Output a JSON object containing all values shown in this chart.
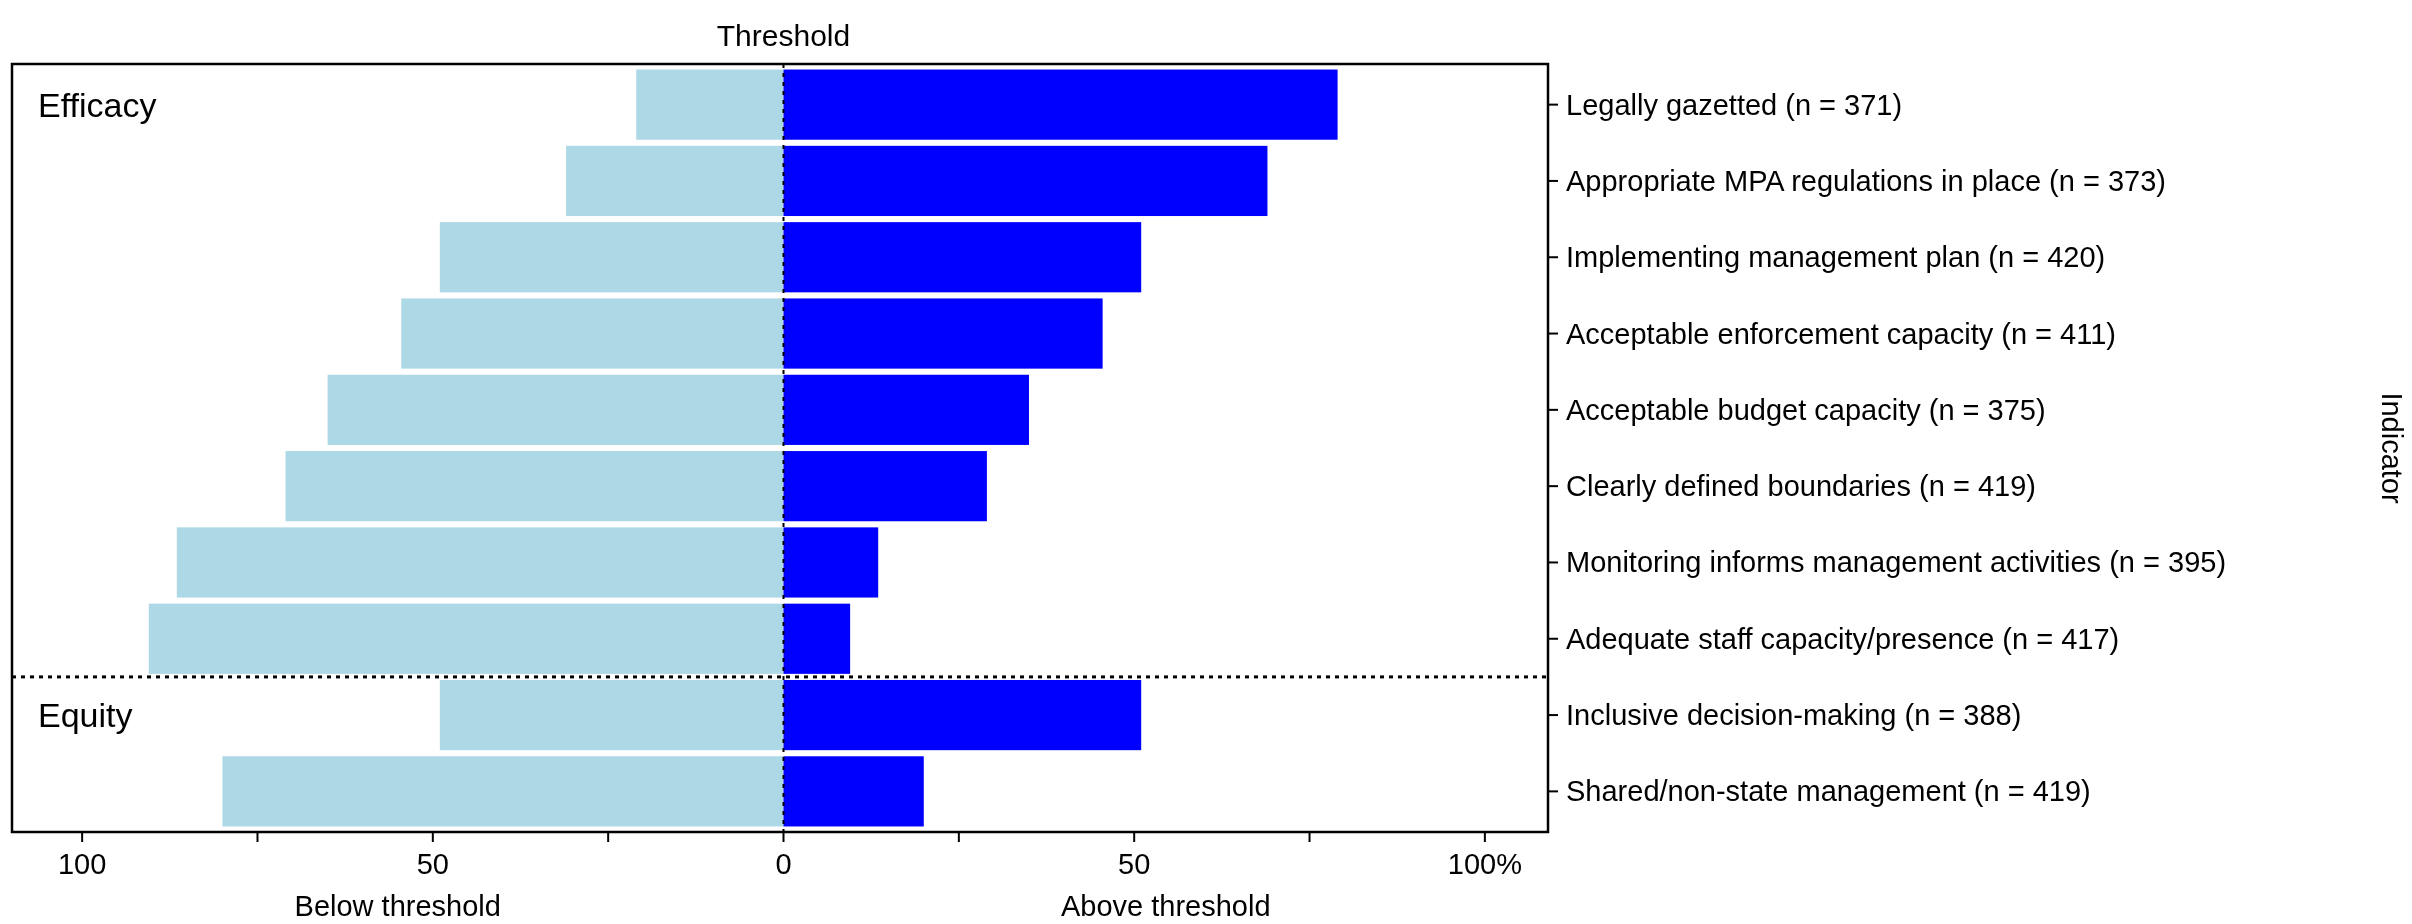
{
  "chart_data": {
    "type": "bar",
    "orientation": "horizontal",
    "stacked": true,
    "categories": [
      "Legally gazetted (n = 371)",
      "Appropriate MPA regulations in place (n = 373)",
      "Implementing management plan (n = 420)",
      "Acceptable enforcement capacity (n = 411)",
      "Acceptable budget capacity (n = 375)",
      "Clearly defined boundaries (n = 419)",
      "Monitoring informs management activities (n = 395)",
      "Adequate staff capacity/presence (n = 417)",
      "Inclusive decision-making (n = 388)",
      "Shared/non-state management (n = 419)"
    ],
    "series": [
      {
        "color": "#add8e6",
        "values": [
          -21,
          -31,
          -49,
          -54.5,
          -65,
          -71,
          -86.5,
          -90.5,
          -49,
          -80
        ]
      },
      {
        "color": "#0000ff",
        "values": [
          79,
          69,
          51,
          45.5,
          35,
          29,
          13.5,
          9.5,
          51,
          20
        ]
      }
    ],
    "xlim": [
      -110,
      109
    ],
    "xticks": [
      {
        "value": -100,
        "label": "100"
      },
      {
        "value": -75,
        "label": null
      },
      {
        "value": -50,
        "label": "50"
      },
      {
        "value": -25,
        "label": null
      },
      0,
      {
        "value": 25,
        "label": null
      },
      50,
      {
        "value": 75,
        "label": null
      },
      {
        "value": 100,
        "label": "100%"
      }
    ],
    "ref_lines": [
      {
        "axis": "x",
        "value": 0,
        "label": "Threshold",
        "line_style": "dotted"
      }
    ],
    "annotations": [
      "Below threshold",
      "Above threshold",
      "Indicator",
      "Efficacy",
      "Equity"
    ],
    "grid": false
  }
}
